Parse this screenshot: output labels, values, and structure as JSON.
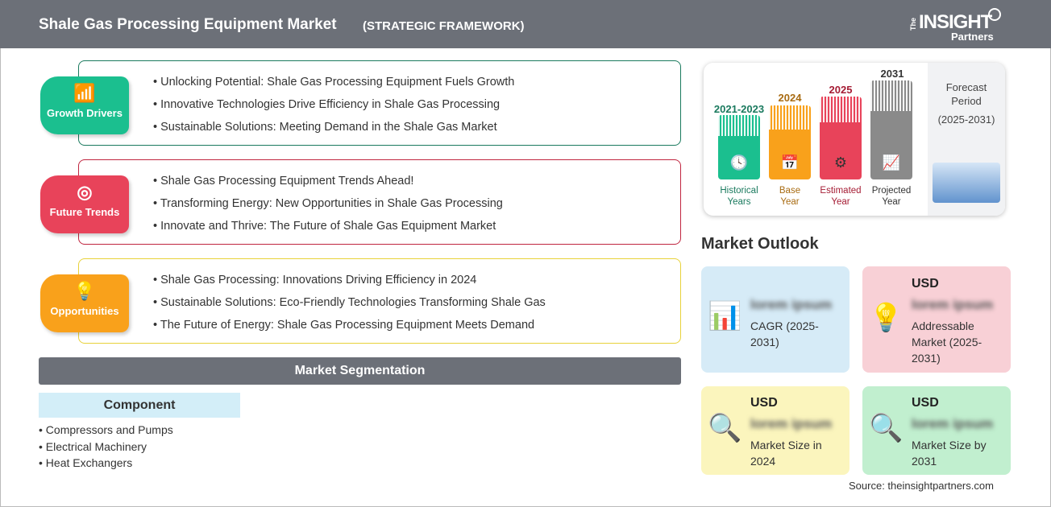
{
  "header": {
    "title": "Shale Gas Processing Equipment Market",
    "subtitle": "(STRATEGIC FRAMEWORK)",
    "logo": {
      "the": "The",
      "insight": "INSIGHT",
      "partners": "Partners"
    }
  },
  "sections": [
    {
      "label": "Growth Drivers",
      "icon": "growth-chart-icon",
      "color": "#1bbf8f",
      "items": [
        "Unlocking Potential: Shale Gas Processing Equipment Fuels Growth",
        "Innovative Technologies Drive Efficiency in Shale Gas Processing",
        "Sustainable Solutions: Meeting Demand in the Shale Gas Market"
      ]
    },
    {
      "label": "Future Trends",
      "icon": "target-icon",
      "color": "#e8435a",
      "items": [
        "Shale Gas Processing Equipment Trends Ahead!",
        "Transforming Energy: New Opportunities in Shale Gas Processing",
        "Innovate and Thrive: The Future of Shale Gas Equipment Market"
      ]
    },
    {
      "label": "Opportunities",
      "icon": "lightbulb-hand-icon",
      "color": "#f9a11b",
      "items": [
        "Shale Gas Processing: Innovations Driving Efficiency in 2024",
        "Sustainable Solutions: Eco-Friendly Technologies Transforming Shale Gas",
        "The Future of Energy: Shale Gas Processing Equipment Meets Demand"
      ]
    }
  ],
  "segmentation": {
    "title": "Market Segmentation",
    "component": {
      "title": "Component",
      "items": [
        "Compressors and Pumps",
        "Electrical Machinery",
        "Heat Exchangers"
      ]
    }
  },
  "timeline": {
    "bars": [
      {
        "year": "2021-2023",
        "label1": "Historical",
        "label2": "Years",
        "color": "#1bbf8f",
        "text_color": "#1a7a5e",
        "icon": "history-icon"
      },
      {
        "year": "2024",
        "label1": "Base",
        "label2": "Year",
        "color": "#f9a11b",
        "text_color": "#a86b12",
        "icon": "calendar-icon"
      },
      {
        "year": "2025",
        "label1": "Estimated",
        "label2": "Year",
        "color": "#e8435a",
        "text_color": "#a51c34",
        "icon": "gear-screen-icon"
      },
      {
        "year": "2031",
        "label1": "Projected",
        "label2": "Year",
        "color": "#8a8a8a",
        "text_color": "#333333",
        "icon": "presentation-icon"
      }
    ],
    "forecast": {
      "line1": "Forecast",
      "line2": "Period",
      "line3": "(2025-2031)"
    }
  },
  "outlook": {
    "title": "Market Outlook",
    "cards": [
      {
        "usd": "",
        "value": "lorem ipsum",
        "label": "CAGR (2025-2031)",
        "bg": "#d6ebf7",
        "icon": "growth-bars-icon"
      },
      {
        "usd": "USD",
        "value": "lorem ipsum",
        "label": "Addressable Market (2025-2031)",
        "bg": "#f8d0d6",
        "icon": "dollar-bulb-icon"
      },
      {
        "usd": "USD",
        "value": "lorem ipsum",
        "label": "Market Size in 2024",
        "bg": "#fbf5bd",
        "icon": "magnifier-chart-icon"
      },
      {
        "usd": "USD",
        "value": "lorem ipsum",
        "label": "Market Size by 2031",
        "bg": "#c1efcf",
        "icon": "magnifier-chart-icon"
      }
    ]
  },
  "source": "Source: theinsightpartners.com"
}
